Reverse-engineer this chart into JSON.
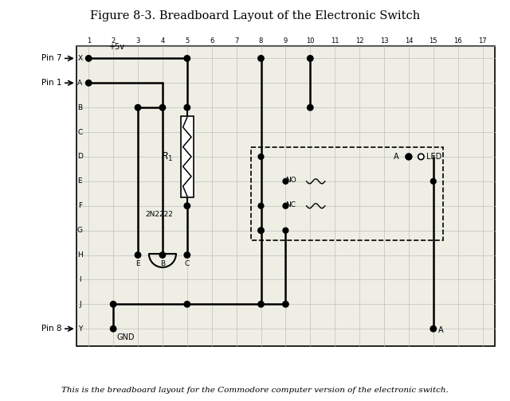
{
  "title": "Figure 8-3. Breadboard Layout of the Electronic Switch",
  "caption": "This is the breadboard layout for the Commodore computer version of the electronic switch.",
  "fig_width": 6.4,
  "fig_height": 5.04,
  "background_color": "#ffffff",
  "grid_color": "#bbbbbb",
  "col_labels": [
    1,
    2,
    3,
    4,
    5,
    6,
    7,
    8,
    9,
    10,
    11,
    12,
    13,
    14,
    15,
    16,
    17
  ],
  "row_labels": [
    "X",
    "A",
    "B",
    "C",
    "D",
    "E",
    "F",
    "G",
    "H",
    "I",
    "J",
    "Y"
  ],
  "pin7_label": "Pin 7",
  "pin1_label": "Pin 1",
  "pin8_label": "Pin 8",
  "plus5v_label": "+5v",
  "gnd_label": "GND",
  "r1_label": "R₁",
  "transistor_label": "2N2222",
  "led_label": "LED",
  "no_label": "NO",
  "nc_label": "NC",
  "a_label": "A"
}
